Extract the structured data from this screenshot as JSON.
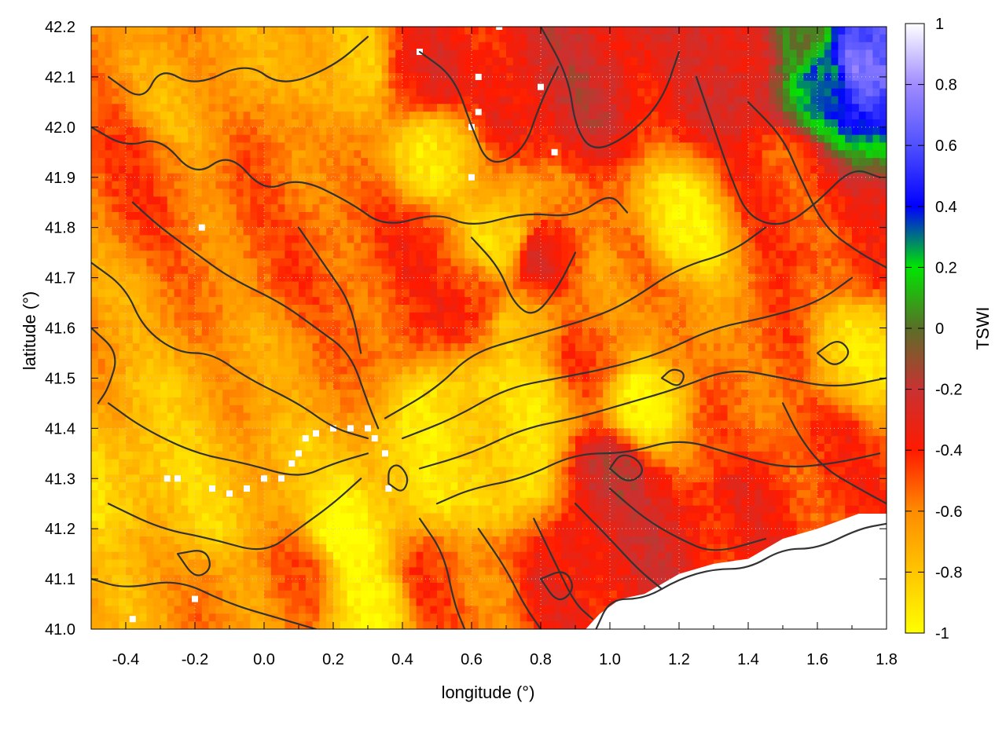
{
  "chart_data": {
    "type": "heatmap",
    "xlabel": "longitude (°)",
    "ylabel": "latitude (°)",
    "colorbar_label": "TSWI",
    "xlim": [
      -0.5,
      1.8
    ],
    "ylim": [
      41.0,
      42.2
    ],
    "clim": [
      -1,
      1
    ],
    "x_ticks": [
      "-0.4",
      "-0.2",
      "0.0",
      "0.2",
      "0.4",
      "0.6",
      "0.8",
      "1.0",
      "1.2",
      "1.4",
      "1.6",
      "1.8"
    ],
    "x_tick_values": [
      -0.4,
      -0.2,
      0.0,
      0.2,
      0.4,
      0.6,
      0.8,
      1.0,
      1.2,
      1.4,
      1.6,
      1.8
    ],
    "y_ticks": [
      "41.0",
      "41.1",
      "41.2",
      "41.3",
      "41.4",
      "41.5",
      "41.6",
      "41.7",
      "41.8",
      "41.9",
      "42.0",
      "42.1",
      "42.2"
    ],
    "y_tick_values": [
      41.0,
      41.1,
      41.2,
      41.3,
      41.4,
      41.5,
      41.6,
      41.7,
      41.8,
      41.9,
      42.0,
      42.1,
      42.2
    ],
    "colorbar_ticks": [
      "1",
      "0.8",
      "0.6",
      "0.4",
      "0.2",
      "0",
      "-0.2",
      "-0.4",
      "-0.6",
      "-0.8",
      "-1"
    ],
    "colorbar_tick_values": [
      1,
      0.8,
      0.6,
      0.4,
      0.2,
      0,
      -0.2,
      -0.4,
      -0.6,
      -0.8,
      -1
    ],
    "colormap": [
      {
        "v": -1.0,
        "color": "#ffff00"
      },
      {
        "v": -0.6,
        "color": "#ff8c00"
      },
      {
        "v": -0.4,
        "color": "#ff1a00"
      },
      {
        "v": -0.2,
        "color": "#c83232"
      },
      {
        "v": 0.0,
        "color": "#5a6e28"
      },
      {
        "v": 0.2,
        "color": "#00e600"
      },
      {
        "v": 0.4,
        "color": "#0000ff"
      },
      {
        "v": 0.6,
        "color": "#5050ff"
      },
      {
        "v": 0.8,
        "color": "#a08cff"
      },
      {
        "v": 1.0,
        "color": "#ffffff"
      }
    ],
    "grid": true,
    "field_regions": [
      {
        "lon": -0.5,
        "lat": 42.2,
        "v": -0.6
      },
      {
        "lon": -0.2,
        "lat": 42.05,
        "v": -0.7
      },
      {
        "lon": -0.35,
        "lat": 41.9,
        "v": -0.5
      },
      {
        "lon": 0.05,
        "lat": 41.95,
        "v": -0.55
      },
      {
        "lon": 0.25,
        "lat": 42.1,
        "v": -0.8
      },
      {
        "lon": 0.45,
        "lat": 42.1,
        "v": -0.35
      },
      {
        "lon": 0.5,
        "lat": 41.95,
        "v": -0.85
      },
      {
        "lon": 0.75,
        "lat": 42.05,
        "v": -0.3
      },
      {
        "lon": 0.95,
        "lat": 42.1,
        "v": -0.25
      },
      {
        "lon": 1.2,
        "lat": 42.1,
        "v": -0.35
      },
      {
        "lon": 1.4,
        "lat": 42.15,
        "v": -0.25
      },
      {
        "lon": 1.55,
        "lat": 42.17,
        "v": -0.05
      },
      {
        "lon": 1.62,
        "lat": 42.1,
        "v": 0.25
      },
      {
        "lon": 1.72,
        "lat": 42.13,
        "v": 0.8
      },
      {
        "lon": 1.78,
        "lat": 42.18,
        "v": 0.65
      },
      {
        "lon": 1.5,
        "lat": 41.9,
        "v": -0.45
      },
      {
        "lon": 1.7,
        "lat": 41.75,
        "v": -0.45
      },
      {
        "lon": 1.2,
        "lat": 41.8,
        "v": -0.9
      },
      {
        "lon": 1.05,
        "lat": 41.72,
        "v": -0.6
      },
      {
        "lon": 0.8,
        "lat": 41.75,
        "v": -0.35
      },
      {
        "lon": 0.7,
        "lat": 41.78,
        "v": -0.9
      },
      {
        "lon": 0.45,
        "lat": 41.75,
        "v": -0.45
      },
      {
        "lon": 0.2,
        "lat": 41.75,
        "v": -0.5
      },
      {
        "lon": -0.1,
        "lat": 41.75,
        "v": -0.55
      },
      {
        "lon": -0.4,
        "lat": 41.6,
        "v": -0.65
      },
      {
        "lon": -0.3,
        "lat": 41.45,
        "v": -0.75
      },
      {
        "lon": 0.05,
        "lat": 41.5,
        "v": -0.65
      },
      {
        "lon": 0.35,
        "lat": 41.6,
        "v": -0.5
      },
      {
        "lon": 0.6,
        "lat": 41.65,
        "v": -0.4
      },
      {
        "lon": 0.75,
        "lat": 41.6,
        "v": -0.75
      },
      {
        "lon": 0.95,
        "lat": 41.55,
        "v": -0.5
      },
      {
        "lon": 1.2,
        "lat": 41.6,
        "v": -0.65
      },
      {
        "lon": 1.45,
        "lat": 41.55,
        "v": -0.5
      },
      {
        "lon": 1.7,
        "lat": 41.55,
        "v": -0.85
      },
      {
        "lon": 0.55,
        "lat": 41.45,
        "v": -0.9
      },
      {
        "lon": 0.75,
        "lat": 41.45,
        "v": -0.85
      },
      {
        "lon": 1.1,
        "lat": 41.45,
        "v": -0.9
      },
      {
        "lon": 1.35,
        "lat": 41.4,
        "v": -0.55
      },
      {
        "lon": 1.6,
        "lat": 41.35,
        "v": -0.45
      },
      {
        "lon": -0.4,
        "lat": 41.3,
        "v": -0.85
      },
      {
        "lon": -0.2,
        "lat": 41.25,
        "v": -0.8
      },
      {
        "lon": 0.05,
        "lat": 41.3,
        "v": -0.75
      },
      {
        "lon": 0.25,
        "lat": 41.2,
        "v": -0.95
      },
      {
        "lon": 0.45,
        "lat": 41.3,
        "v": -0.85
      },
      {
        "lon": 0.7,
        "lat": 41.3,
        "v": -0.9
      },
      {
        "lon": 1.0,
        "lat": 41.3,
        "v": -0.25
      },
      {
        "lon": 1.15,
        "lat": 41.2,
        "v": -0.3
      },
      {
        "lon": 1.4,
        "lat": 41.25,
        "v": -0.4
      },
      {
        "lon": 1.65,
        "lat": 41.28,
        "v": -0.45
      },
      {
        "lon": -0.4,
        "lat": 41.1,
        "v": -0.7
      },
      {
        "lon": -0.1,
        "lat": 41.05,
        "v": -0.6
      },
      {
        "lon": 0.1,
        "lat": 41.1,
        "v": -0.55
      },
      {
        "lon": 0.3,
        "lat": 41.05,
        "v": -0.9
      },
      {
        "lon": 0.5,
        "lat": 41.1,
        "v": -0.5
      },
      {
        "lon": 0.65,
        "lat": 41.08,
        "v": -0.55
      },
      {
        "lon": 0.85,
        "lat": 41.08,
        "v": -0.4
      },
      {
        "lon": 0.95,
        "lat": 41.15,
        "v": -0.3
      }
    ],
    "no_data_sea": [
      [
        0.93,
        41.0
      ],
      [
        1.8,
        41.0
      ],
      [
        1.8,
        41.23
      ],
      [
        1.72,
        41.23
      ],
      [
        1.6,
        41.2
      ],
      [
        1.5,
        41.18
      ],
      [
        1.4,
        41.14
      ],
      [
        1.3,
        41.13
      ],
      [
        1.2,
        41.11
      ],
      [
        1.1,
        41.07
      ],
      [
        1.03,
        41.06
      ],
      [
        0.97,
        41.03
      ]
    ],
    "coastline": [
      [
        0.96,
        41.0
      ],
      [
        1.0,
        41.06
      ],
      [
        1.1,
        41.06
      ],
      [
        1.2,
        41.1
      ],
      [
        1.3,
        41.12
      ],
      [
        1.4,
        41.12
      ],
      [
        1.5,
        41.16
      ],
      [
        1.6,
        41.16
      ],
      [
        1.72,
        41.2
      ],
      [
        1.8,
        41.21
      ]
    ],
    "contours": [
      [
        [
          -0.45,
          42.1
        ],
        [
          -0.35,
          42.05
        ],
        [
          -0.3,
          42.12
        ],
        [
          -0.2,
          42.08
        ],
        [
          -0.05,
          42.13
        ],
        [
          0.05,
          42.08
        ],
        [
          0.2,
          42.12
        ],
        [
          0.3,
          42.18
        ]
      ],
      [
        [
          -0.5,
          42.0
        ],
        [
          -0.4,
          41.96
        ],
        [
          -0.3,
          41.98
        ],
        [
          -0.2,
          41.9
        ],
        [
          -0.1,
          41.95
        ],
        [
          0.0,
          41.87
        ],
        [
          0.1,
          41.9
        ],
        [
          0.25,
          41.85
        ],
        [
          0.35,
          41.8
        ],
        [
          0.5,
          41.83
        ],
        [
          0.6,
          41.8
        ],
        [
          0.75,
          41.83
        ],
        [
          0.9,
          41.82
        ],
        [
          1.0,
          41.87
        ],
        [
          1.05,
          41.83
        ]
      ],
      [
        [
          -0.38,
          41.85
        ],
        [
          -0.3,
          41.8
        ],
        [
          -0.2,
          41.75
        ],
        [
          -0.1,
          41.7
        ],
        [
          0.05,
          41.65
        ],
        [
          0.15,
          41.6
        ],
        [
          0.25,
          41.55
        ],
        [
          0.3,
          41.45
        ],
        [
          0.33,
          41.4
        ]
      ],
      [
        [
          -0.5,
          41.73
        ],
        [
          -0.4,
          41.68
        ],
        [
          -0.35,
          41.6
        ],
        [
          -0.25,
          41.55
        ],
        [
          -0.15,
          41.55
        ],
        [
          -0.05,
          41.5
        ],
        [
          0.1,
          41.45
        ],
        [
          0.2,
          41.4
        ],
        [
          0.3,
          41.38
        ]
      ],
      [
        [
          -0.45,
          41.45
        ],
        [
          -0.35,
          41.4
        ],
        [
          -0.2,
          41.35
        ],
        [
          -0.05,
          41.33
        ],
        [
          0.1,
          41.3
        ],
        [
          0.2,
          41.33
        ],
        [
          0.3,
          41.35
        ]
      ],
      [
        [
          -0.45,
          41.25
        ],
        [
          -0.3,
          41.2
        ],
        [
          -0.15,
          41.18
        ],
        [
          0.0,
          41.15
        ],
        [
          0.1,
          41.2
        ],
        [
          0.2,
          41.25
        ],
        [
          0.28,
          41.3
        ]
      ],
      [
        [
          -0.5,
          41.1
        ],
        [
          -0.4,
          41.08
        ],
        [
          -0.25,
          41.1
        ],
        [
          -0.1,
          41.05
        ],
        [
          0.05,
          41.02
        ],
        [
          0.15,
          41.0
        ]
      ],
      [
        [
          0.35,
          41.42
        ],
        [
          0.5,
          41.48
        ],
        [
          0.6,
          41.55
        ],
        [
          0.75,
          41.58
        ],
        [
          0.85,
          41.6
        ],
        [
          0.95,
          41.62
        ],
        [
          1.05,
          41.65
        ],
        [
          1.2,
          41.72
        ],
        [
          1.35,
          41.75
        ],
        [
          1.45,
          41.8
        ]
      ],
      [
        [
          0.4,
          41.38
        ],
        [
          0.55,
          41.42
        ],
        [
          0.7,
          41.48
        ],
        [
          0.85,
          41.5
        ],
        [
          1.0,
          41.52
        ],
        [
          1.15,
          41.55
        ],
        [
          1.3,
          41.6
        ],
        [
          1.45,
          41.62
        ],
        [
          1.6,
          41.65
        ],
        [
          1.7,
          41.7
        ]
      ],
      [
        [
          0.45,
          41.32
        ],
        [
          0.6,
          41.35
        ],
        [
          0.75,
          41.4
        ],
        [
          0.9,
          41.42
        ],
        [
          1.05,
          41.45
        ],
        [
          1.2,
          41.48
        ],
        [
          1.35,
          41.52
        ],
        [
          1.5,
          41.5
        ],
        [
          1.65,
          41.48
        ],
        [
          1.8,
          41.5
        ]
      ],
      [
        [
          0.5,
          41.25
        ],
        [
          0.6,
          41.28
        ],
        [
          0.75,
          41.3
        ],
        [
          0.9,
          41.35
        ],
        [
          1.05,
          41.35
        ],
        [
          1.2,
          41.38
        ],
        [
          1.35,
          41.35
        ],
        [
          1.5,
          41.32
        ],
        [
          1.65,
          41.33
        ],
        [
          1.78,
          41.35
        ]
      ],
      [
        [
          0.45,
          41.22
        ],
        [
          0.52,
          41.15
        ],
        [
          0.55,
          41.05
        ],
        [
          0.58,
          41.0
        ]
      ],
      [
        [
          0.62,
          41.2
        ],
        [
          0.7,
          41.12
        ],
        [
          0.75,
          41.05
        ],
        [
          0.8,
          41.0
        ]
      ],
      [
        [
          0.78,
          41.22
        ],
        [
          0.85,
          41.12
        ],
        [
          0.9,
          41.05
        ],
        [
          0.95,
          41.02
        ]
      ],
      [
        [
          0.9,
          41.25
        ],
        [
          1.0,
          41.18
        ],
        [
          1.08,
          41.12
        ],
        [
          1.15,
          41.08
        ]
      ],
      [
        [
          1.0,
          41.28
        ],
        [
          1.1,
          41.22
        ],
        [
          1.2,
          41.18
        ],
        [
          1.3,
          41.15
        ],
        [
          1.45,
          41.18
        ]
      ],
      [
        [
          0.45,
          42.15
        ],
        [
          0.55,
          42.1
        ],
        [
          0.6,
          42.0
        ],
        [
          0.65,
          41.92
        ],
        [
          0.75,
          41.95
        ],
        [
          0.8,
          42.05
        ],
        [
          0.85,
          42.12
        ]
      ],
      [
        [
          0.8,
          42.2
        ],
        [
          0.88,
          42.1
        ],
        [
          0.9,
          42.0
        ],
        [
          0.95,
          41.95
        ],
        [
          1.05,
          41.98
        ],
        [
          1.15,
          42.05
        ],
        [
          1.2,
          42.15
        ]
      ],
      [
        [
          1.25,
          42.1
        ],
        [
          1.3,
          42.0
        ],
        [
          1.35,
          41.9
        ],
        [
          1.4,
          41.82
        ],
        [
          1.5,
          41.8
        ],
        [
          1.6,
          41.85
        ],
        [
          1.7,
          41.92
        ],
        [
          1.78,
          41.9
        ]
      ],
      [
        [
          1.4,
          42.05
        ],
        [
          1.5,
          41.98
        ],
        [
          1.55,
          41.9
        ],
        [
          1.62,
          41.8
        ],
        [
          1.72,
          41.75
        ],
        [
          1.8,
          41.72
        ]
      ],
      [
        [
          -0.5,
          41.6
        ],
        [
          -0.42,
          41.55
        ],
        [
          -0.45,
          41.48
        ],
        [
          -0.48,
          41.45
        ]
      ],
      [
        [
          0.1,
          41.8
        ],
        [
          0.18,
          41.72
        ],
        [
          0.25,
          41.65
        ],
        [
          0.28,
          41.55
        ]
      ],
      [
        [
          0.6,
          41.78
        ],
        [
          0.68,
          41.72
        ],
        [
          0.72,
          41.65
        ],
        [
          0.78,
          41.62
        ],
        [
          0.85,
          41.68
        ],
        [
          0.9,
          41.75
        ]
      ],
      [
        [
          1.5,
          41.45
        ],
        [
          1.55,
          41.38
        ],
        [
          1.62,
          41.32
        ],
        [
          1.72,
          41.28
        ],
        [
          1.8,
          41.25
        ]
      ]
    ],
    "contour_loops": [
      [
        [
          1.0,
          41.32
        ],
        [
          1.05,
          41.29
        ],
        [
          1.1,
          41.31
        ],
        [
          1.08,
          41.34
        ],
        [
          1.03,
          41.35
        ]
      ],
      [
        [
          0.36,
          41.29
        ],
        [
          0.4,
          41.27
        ],
        [
          0.42,
          41.3
        ],
        [
          0.39,
          41.33
        ],
        [
          0.36,
          41.32
        ]
      ],
      [
        [
          -0.25,
          41.15
        ],
        [
          -0.2,
          41.1
        ],
        [
          -0.15,
          41.12
        ],
        [
          -0.17,
          41.16
        ]
      ],
      [
        [
          0.8,
          41.1
        ],
        [
          0.85,
          41.05
        ],
        [
          0.9,
          41.08
        ],
        [
          0.87,
          41.12
        ]
      ],
      [
        [
          1.6,
          41.55
        ],
        [
          1.65,
          41.52
        ],
        [
          1.7,
          41.55
        ],
        [
          1.66,
          41.58
        ]
      ],
      [
        [
          1.15,
          41.5
        ],
        [
          1.2,
          41.48
        ],
        [
          1.22,
          41.51
        ],
        [
          1.18,
          41.52
        ]
      ]
    ],
    "missing_pixels": [
      [
        0.3,
        41.4
      ],
      [
        0.25,
        41.4
      ],
      [
        0.2,
        41.4
      ],
      [
        0.15,
        41.39
      ],
      [
        0.12,
        41.38
      ],
      [
        0.1,
        41.35
      ],
      [
        0.08,
        41.33
      ],
      [
        0.05,
        41.3
      ],
      [
        0.0,
        41.3
      ],
      [
        -0.05,
        41.28
      ],
      [
        -0.1,
        41.27
      ],
      [
        -0.15,
        41.28
      ],
      [
        -0.25,
        41.3
      ],
      [
        -0.28,
        41.3
      ],
      [
        0.32,
        41.38
      ],
      [
        0.35,
        41.35
      ],
      [
        0.36,
        41.28
      ],
      [
        0.62,
        42.03
      ],
      [
        0.6,
        42.0
      ],
      [
        0.45,
        42.15
      ],
      [
        0.84,
        41.95
      ],
      [
        0.6,
        41.9
      ],
      [
        -0.2,
        41.06
      ],
      [
        -0.38,
        41.02
      ],
      [
        -0.18,
        41.8
      ],
      [
        0.8,
        42.08
      ],
      [
        0.62,
        42.1
      ],
      [
        0.68,
        42.2
      ]
    ]
  }
}
